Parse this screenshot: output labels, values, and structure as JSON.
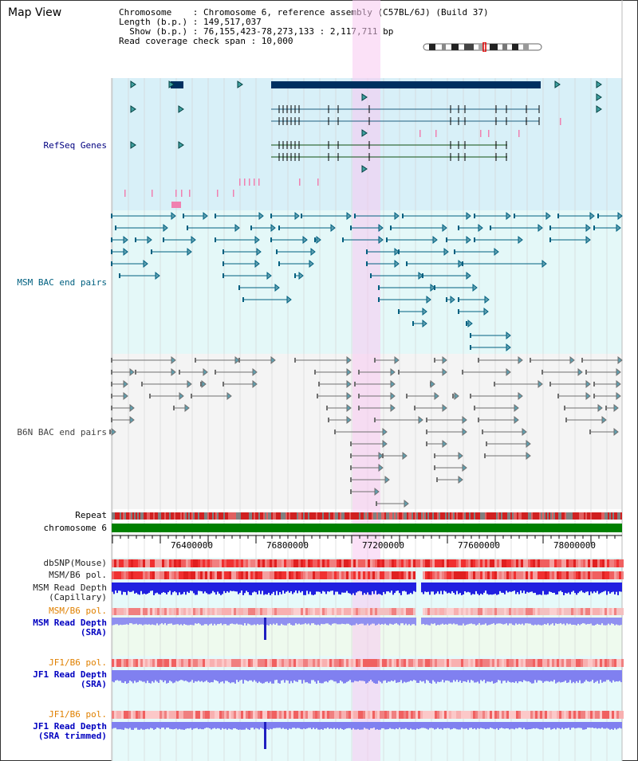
{
  "panel": {
    "title": "Map View"
  },
  "info": {
    "chromosome_line": "Chromosome    : Chromosome 6, reference assembly (C57BL/6J) (Build 37)",
    "length_line": "Length (b.p.) : 149,517,037",
    "show_line": "  Show (b.p.) : 76,155,423-78,273,133 : 2,117,711 bp",
    "span_line": "Read coverage check span : 10,000"
  },
  "tracks": {
    "refseq": "RefSeq Genes",
    "msm_bac": "MSM BAC end pairs",
    "b6n_bac": "B6N BAC end pairs",
    "repeat": "Repeat",
    "chromosome": "chromosome 6",
    "dbsnp": "dbSNP(Mouse)",
    "msm_pol": "MSM/B6 pol.",
    "msm_depth_cap": "MSM Read Depth\n(Capillary)",
    "msm_pol2": "MSM/B6 pol.",
    "msm_depth_sra": "MSM Read Depth\n(SRA)",
    "jf1_pol": "JF1/B6 pol.",
    "jf1_depth_sra": "JF1 Read Depth\n(SRA)",
    "jf1_pol2": "JF1/B6 pol.",
    "jf1_depth_trim": "JF1 Read Depth\n(SRA trimmed)"
  },
  "axis": {
    "ticks": [
      "76400000",
      "76800000",
      "77200000",
      "77600000",
      "78000000"
    ]
  },
  "colors": {
    "refseq_bg": "#d8f0f8",
    "msm_bg": "#e4f8f8",
    "highlight": "#f8d8f0",
    "chrom": "#008000"
  }
}
